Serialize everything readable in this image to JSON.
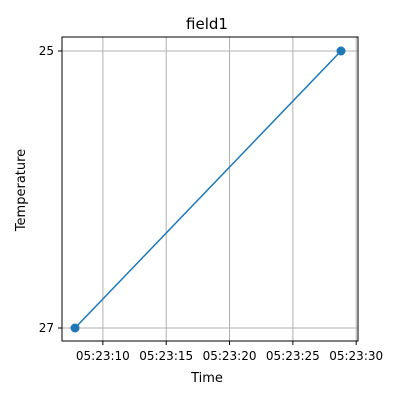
{
  "chart_data": {
    "type": "line",
    "title": "field1",
    "xlabel": "Time",
    "ylabel": "Temperature",
    "x_ticks": [
      "05:23:10",
      "05:23:15",
      "05:23:20",
      "05:23:25",
      "05:23:30"
    ],
    "y_ticks": [
      "27",
      "25"
    ],
    "series": [
      {
        "x": [
          "05:23:07.8",
          "05:23:28.8"
        ],
        "y": [
          "27",
          "25"
        ],
        "color": "#1f77b4",
        "marker": "circle"
      }
    ],
    "y_axis": "categorical",
    "grid": true
  }
}
